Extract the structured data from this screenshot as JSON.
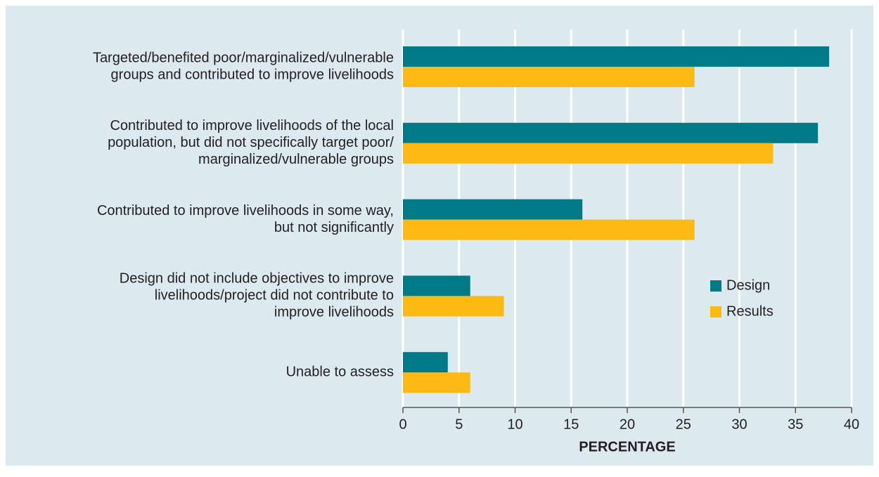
{
  "chart_data": {
    "type": "bar",
    "orientation": "horizontal",
    "categories": [
      [
        "Targeted/benefited poor/marginalized/vulnerable",
        "groups and contributed to improve livelihoods"
      ],
      [
        "Contributed to improve livelihoods of the local",
        "population, but did not specifically target poor/",
        "marginalized/vulnerable groups"
      ],
      [
        "Contributed to improve livelihoods in some way,",
        "but not significantly"
      ],
      [
        "Design did not include objectives to improve",
        "livelihoods/project did not contribute to",
        "improve livelihoods"
      ],
      [
        "Unable to assess"
      ]
    ],
    "series": [
      {
        "name": "Design",
        "color": "#007a87",
        "values": [
          38,
          37,
          16,
          6,
          4
        ]
      },
      {
        "name": "Results",
        "color": "#fdb913",
        "values": [
          26,
          33,
          26,
          9,
          6
        ]
      }
    ],
    "xlabel": "PERCENTAGE",
    "xlim": [
      0,
      40
    ],
    "xticks": [
      0,
      5,
      10,
      15,
      20,
      25,
      30,
      35,
      40
    ],
    "grid": true,
    "legend": "right"
  }
}
